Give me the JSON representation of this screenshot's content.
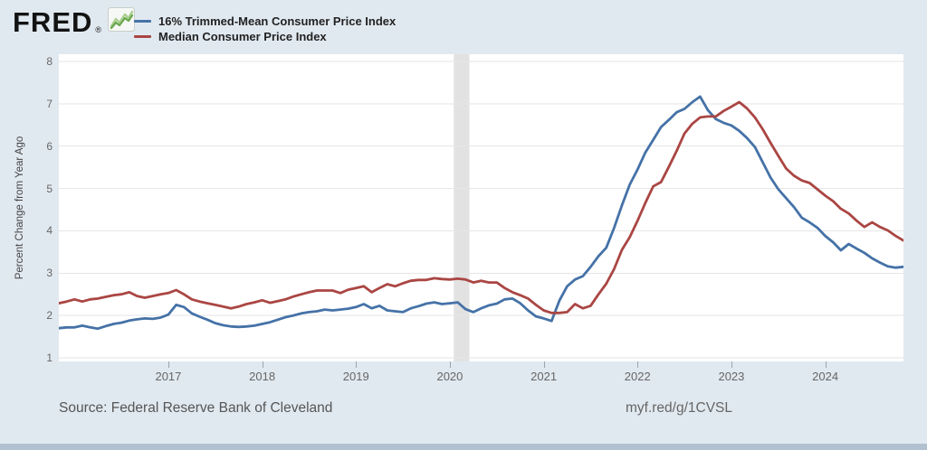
{
  "header": {
    "logo_text": "FRED",
    "logo_reg": "®"
  },
  "chart_data": {
    "type": "line",
    "title": "",
    "xlabel": "",
    "ylabel": "Percent Change from Year Ago",
    "ylim": [
      1,
      8
    ],
    "y_ticks": [
      1,
      2,
      3,
      4,
      5,
      6,
      7,
      8
    ],
    "x_tick_years": [
      2017,
      2018,
      2019,
      2020,
      2021,
      2022,
      2023,
      2024
    ],
    "x_range": {
      "start": "2015-11",
      "end": "2024-11",
      "freq": "monthly"
    },
    "grid": true,
    "legend_position": "top-left",
    "gridline_color": "#e6e6e6",
    "recession_band": {
      "start": "2020-02",
      "end": "2020-04",
      "color": "#e2e2e2"
    },
    "series": [
      {
        "name": "16% Trimmed-Mean Consumer Price Index",
        "color": "#4572a7",
        "values": [
          1.7,
          1.72,
          1.72,
          1.76,
          1.72,
          1.69,
          1.75,
          1.8,
          1.83,
          1.88,
          1.91,
          1.93,
          1.92,
          1.95,
          2.02,
          2.25,
          2.2,
          2.05,
          1.97,
          1.9,
          1.82,
          1.77,
          1.74,
          1.73,
          1.74,
          1.76,
          1.8,
          1.84,
          1.9,
          1.96,
          2.0,
          2.05,
          2.08,
          2.1,
          2.14,
          2.12,
          2.14,
          2.16,
          2.2,
          2.27,
          2.17,
          2.23,
          2.12,
          2.1,
          2.08,
          2.17,
          2.22,
          2.28,
          2.31,
          2.27,
          2.29,
          2.31,
          2.15,
          2.08,
          2.17,
          2.24,
          2.28,
          2.38,
          2.4,
          2.29,
          2.12,
          1.98,
          1.93,
          1.87,
          2.35,
          2.69,
          2.85,
          2.93,
          3.15,
          3.4,
          3.6,
          4.07,
          4.6,
          5.09,
          5.45,
          5.85,
          6.15,
          6.45,
          6.62,
          6.8,
          6.88,
          7.04,
          7.17,
          6.85,
          6.64,
          6.55,
          6.49,
          6.36,
          6.19,
          5.98,
          5.62,
          5.26,
          4.98,
          4.77,
          4.56,
          4.31,
          4.2,
          4.07,
          3.88,
          3.73,
          3.54,
          3.69,
          3.58,
          3.48,
          3.35,
          3.25,
          3.16,
          3.13,
          3.15
        ]
      },
      {
        "name": "Median Consumer Price Index",
        "color": "#aa4643",
        "values": [
          2.29,
          2.33,
          2.38,
          2.33,
          2.38,
          2.4,
          2.44,
          2.48,
          2.5,
          2.55,
          2.46,
          2.42,
          2.46,
          2.5,
          2.53,
          2.6,
          2.5,
          2.38,
          2.33,
          2.29,
          2.25,
          2.21,
          2.17,
          2.21,
          2.27,
          2.31,
          2.36,
          2.3,
          2.34,
          2.38,
          2.45,
          2.5,
          2.55,
          2.59,
          2.59,
          2.59,
          2.53,
          2.61,
          2.65,
          2.69,
          2.55,
          2.65,
          2.74,
          2.69,
          2.76,
          2.82,
          2.84,
          2.84,
          2.88,
          2.86,
          2.85,
          2.87,
          2.85,
          2.78,
          2.82,
          2.78,
          2.78,
          2.65,
          2.55,
          2.48,
          2.4,
          2.25,
          2.12,
          2.06,
          2.06,
          2.08,
          2.27,
          2.17,
          2.23,
          2.5,
          2.75,
          3.1,
          3.55,
          3.85,
          4.24,
          4.66,
          5.05,
          5.15,
          5.51,
          5.89,
          6.3,
          6.53,
          6.68,
          6.7,
          6.7,
          6.83,
          6.93,
          7.04,
          6.89,
          6.68,
          6.4,
          6.08,
          5.77,
          5.47,
          5.3,
          5.19,
          5.13,
          4.98,
          4.83,
          4.7,
          4.52,
          4.41,
          4.24,
          4.09,
          4.2,
          4.09,
          4.01,
          3.88,
          3.77
        ]
      }
    ]
  },
  "footer": {
    "source": "Source: Federal Reserve Bank of Cleveland",
    "link": "myf.red/g/1CVSL"
  }
}
